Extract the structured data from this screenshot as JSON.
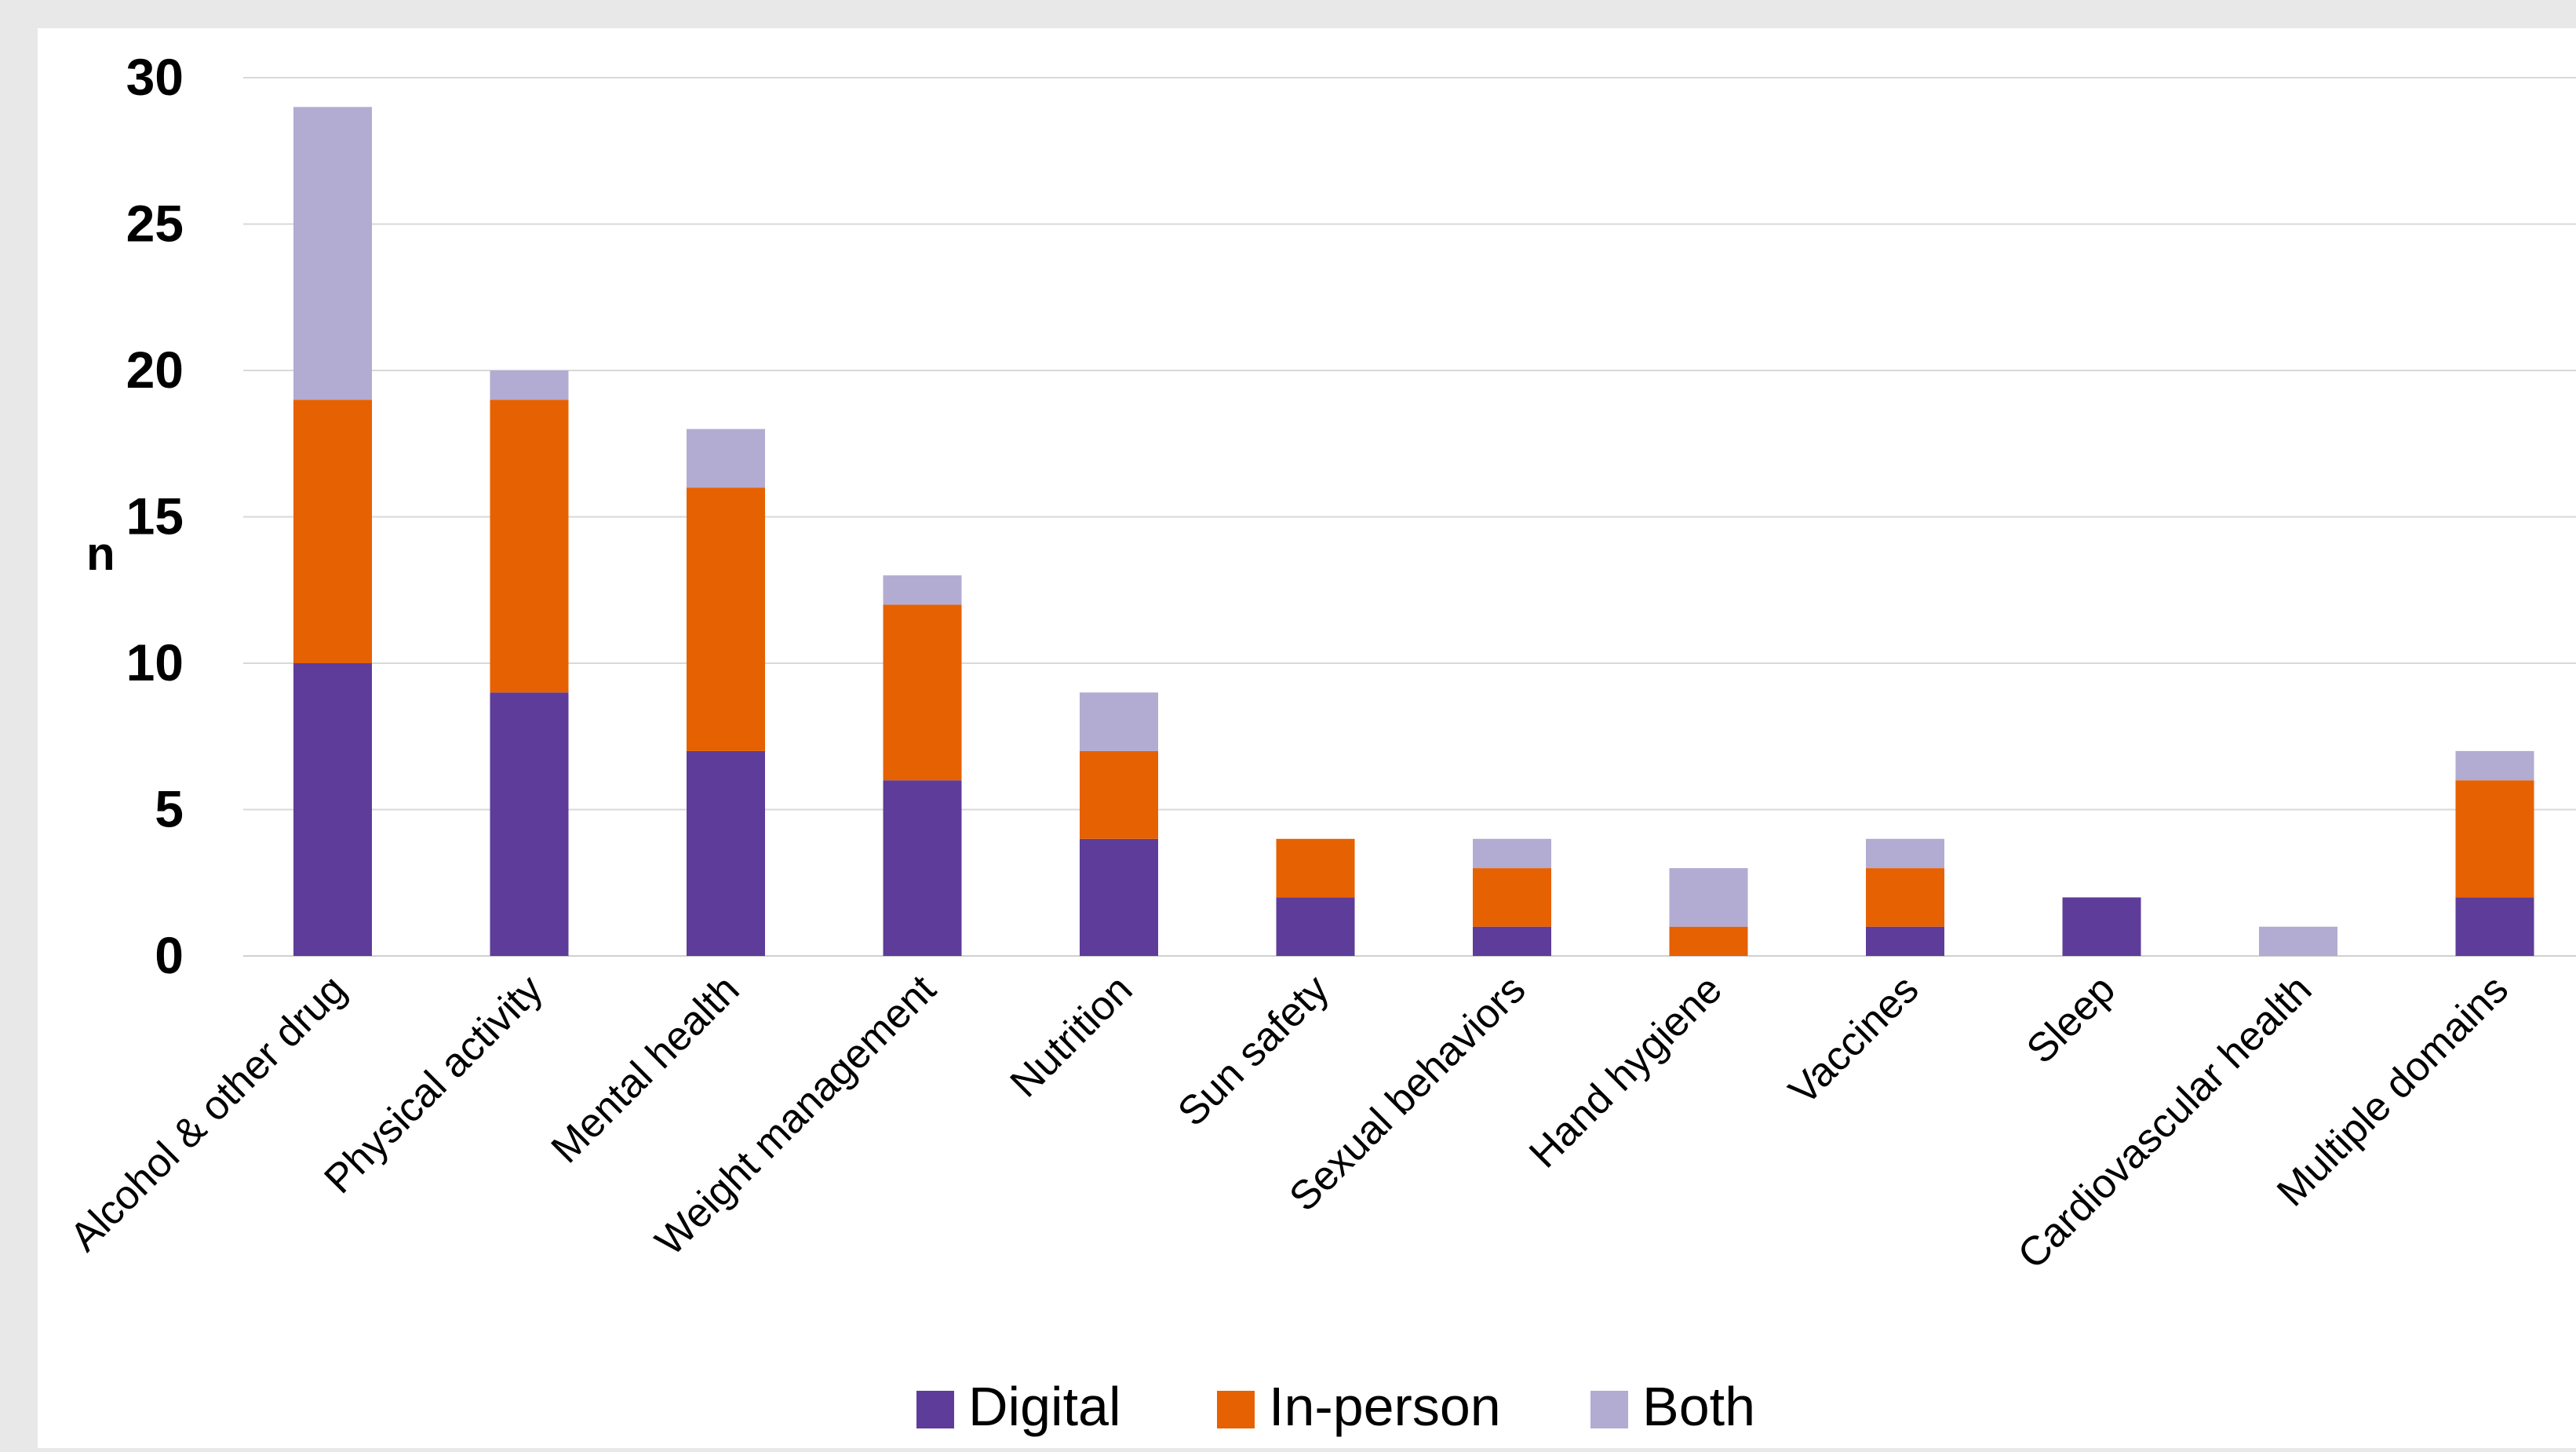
{
  "chart_data": {
    "type": "bar",
    "stacked": true,
    "title": "",
    "xlabel": "",
    "ylabel": "n",
    "ylim": [
      0,
      30
    ],
    "yticks": [
      0,
      5,
      10,
      15,
      20,
      25,
      30
    ],
    "grid": true,
    "legend_position": "bottom",
    "categories": [
      "Alcohol & other drug",
      "Physical activity",
      "Mental health",
      "Weight management",
      "Nutrition",
      "Sun safety",
      "Sexual behaviors",
      "Hand hygiene",
      "Vaccines",
      "Sleep",
      "Cardiovascular health",
      "Multiple domains"
    ],
    "series": [
      {
        "name": "Digital",
        "color": "#5e3c99",
        "values": [
          10,
          9,
          7,
          6,
          4,
          2,
          1,
          0,
          1,
          2,
          0,
          2
        ]
      },
      {
        "name": "In-person",
        "color": "#e66101",
        "values": [
          9,
          10,
          9,
          6,
          3,
          2,
          2,
          1,
          2,
          0,
          0,
          4
        ]
      },
      {
        "name": "Both",
        "color": "#b2abd2",
        "values": [
          10,
          1,
          2,
          1,
          2,
          0,
          1,
          2,
          1,
          0,
          1,
          1
        ]
      }
    ]
  }
}
